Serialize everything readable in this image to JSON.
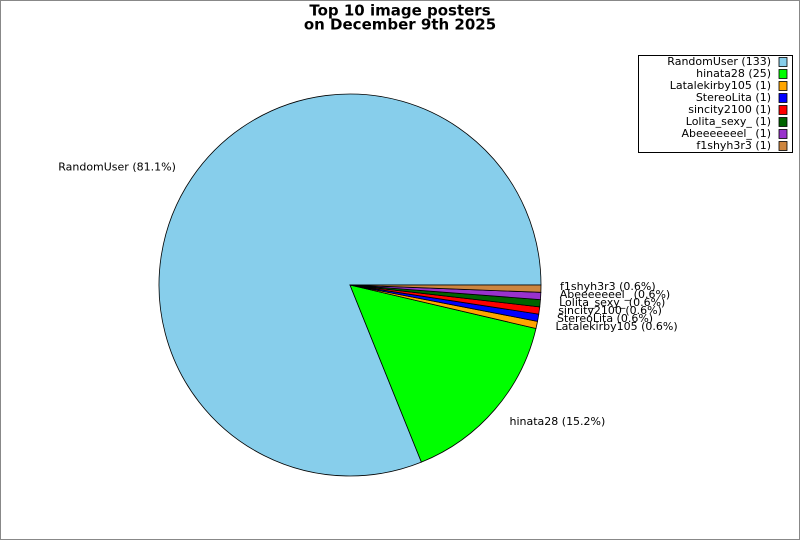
{
  "chart_data": {
    "type": "pie",
    "title": [
      "Top 10 image posters",
      "on December 9th 2025"
    ],
    "categories": [
      "RandomUser",
      "hinata28",
      "Latalekirby105",
      "StereoLita",
      "sincity2100",
      "Lolita_sexy_",
      "Abeeeeeeel_",
      "f1shyh3r3"
    ],
    "values": [
      133,
      25,
      1,
      1,
      1,
      1,
      1,
      1
    ],
    "slice_labels": [
      "RandomUser (81.1%)",
      "hinata28 (15.2%)",
      "Latalekirby105 (0.6%)",
      "StereoLita (0.6%)",
      "sincity2100 (0.6%)",
      "Lolita_sexy_ (0.6%)",
      "Abeeeeeeel_ (0.6%)",
      "f1shyh3r3 (0.6%)"
    ],
    "legend_labels": [
      "RandomUser (133)",
      "hinata28 (25)",
      "Latalekirby105 (1)",
      "StereoLita (1)",
      "sincity2100 (1)",
      "Lolita_sexy_ (1)",
      "Abeeeeeeel_ (1)",
      "f1shyh3r3 (1)"
    ],
    "colors": [
      "#87ceeb",
      "#00ff00",
      "#ffa500",
      "#0000ff",
      "#ff0000",
      "#006400",
      "#9932cc",
      "#cd853f"
    ],
    "legend": "upper right"
  }
}
